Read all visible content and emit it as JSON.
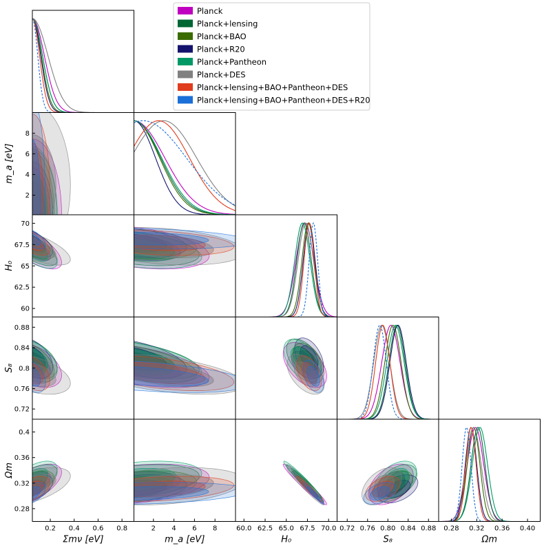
{
  "chart_data": {
    "type": "triangle",
    "title": "",
    "parameters": [
      {
        "name": "mnu",
        "label": "Σmν [eV]",
        "range": [
          0.05,
          0.9
        ],
        "ticks": [
          0.2,
          0.4,
          0.6,
          0.8
        ],
        "tick_labels": [
          "0.2",
          "0.4",
          "0.6",
          "0.8"
        ]
      },
      {
        "name": "ma",
        "label": "m_a [eV]",
        "range": [
          0.1,
          10.0
        ],
        "ticks": [
          2,
          4,
          6,
          8
        ],
        "tick_labels": [
          "2",
          "4",
          "6",
          "8"
        ]
      },
      {
        "name": "H0",
        "label": "H₀",
        "range": [
          59.0,
          71.0
        ],
        "ticks": [
          60.0,
          62.5,
          65.0,
          67.5,
          70.0
        ],
        "tick_labels": [
          "60.0",
          "62.5",
          "65.0",
          "67.5",
          "70.0"
        ],
        "y_tick_labels": [
          "60",
          "62.5",
          "65",
          "67.5",
          "70"
        ]
      },
      {
        "name": "S8",
        "label": "S₈",
        "range": [
          0.7,
          0.9
        ],
        "ticks": [
          0.72,
          0.76,
          0.8,
          0.84,
          0.88
        ],
        "tick_labels": [
          "0.72",
          "0.76",
          "0.80",
          "0.84",
          "0.88"
        ],
        "y_tick_labels": [
          "0.72",
          "0.76",
          "0.8",
          "0.84",
          "0.88"
        ]
      },
      {
        "name": "Om",
        "label": "Ωm",
        "range": [
          0.26,
          0.42
        ],
        "ticks": [
          0.28,
          0.32,
          0.36,
          0.4
        ],
        "tick_labels": [
          "0.28",
          "0.32",
          "0.36",
          "0.40"
        ],
        "y_tick_labels": [
          "0.28",
          "0.32",
          "0.36",
          "0.4"
        ]
      }
    ],
    "legend_position": "top-right",
    "series": [
      {
        "name": "Planck",
        "color": "#c000c0",
        "dashed": false,
        "mean": {
          "mnu": 0.05,
          "ma": 0.1,
          "H0": 67.2,
          "S8": 0.806,
          "Om": 0.318
        },
        "sd": {
          "mnu": 0.1,
          "ma": 3.0,
          "H0": 1.05,
          "S8": 0.018,
          "Om": 0.013
        },
        "corr": {
          "mnu_H0": -0.7,
          "mnu_S8": -0.45,
          "mnu_Om": 0.6,
          "ma_H0": -0.4,
          "ma_S8": -0.55,
          "ma_Om": 0.35,
          "H0_S8": -0.5,
          "H0_Om": -0.97,
          "S8_Om": 0.45
        }
      },
      {
        "name": "Planck+lensing",
        "color": "#006633",
        "dashed": false,
        "mean": {
          "mnu": 0.05,
          "ma": 0.1,
          "H0": 67.1,
          "S8": 0.818,
          "Om": 0.322
        },
        "sd": {
          "mnu": 0.085,
          "ma": 2.6,
          "H0": 0.85,
          "S8": 0.016,
          "Om": 0.011
        },
        "corr": {
          "mnu_H0": -0.7,
          "mnu_S8": -0.45,
          "mnu_Om": 0.6,
          "ma_H0": -0.4,
          "ma_S8": -0.55,
          "ma_Om": 0.35,
          "H0_S8": -0.5,
          "H0_Om": -0.97,
          "S8_Om": 0.45
        }
      },
      {
        "name": "Planck+BAO",
        "color": "#3a6b00",
        "dashed": false,
        "mean": {
          "mnu": 0.05,
          "ma": 0.1,
          "H0": 67.6,
          "S8": 0.81,
          "Om": 0.315
        },
        "sd": {
          "mnu": 0.075,
          "ma": 2.5,
          "H0": 0.75,
          "S8": 0.016,
          "Om": 0.01
        },
        "corr": {
          "mnu_H0": -0.6,
          "mnu_S8": -0.45,
          "mnu_Om": 0.5,
          "ma_H0": -0.3,
          "ma_S8": -0.55,
          "ma_Om": 0.3,
          "H0_S8": -0.45,
          "H0_Om": -0.97,
          "S8_Om": 0.45
        }
      },
      {
        "name": "Planck+R20",
        "color": "#14146e",
        "dashed": false,
        "mean": {
          "mnu": 0.05,
          "ma": 0.1,
          "H0": 67.7,
          "S8": 0.82,
          "Om": 0.311
        },
        "sd": {
          "mnu": 0.07,
          "ma": 2.1,
          "H0": 0.7,
          "S8": 0.016,
          "Om": 0.009
        },
        "corr": {
          "mnu_H0": -0.6,
          "mnu_S8": -0.45,
          "mnu_Om": 0.5,
          "ma_H0": -0.3,
          "ma_S8": -0.55,
          "ma_Om": 0.3,
          "H0_S8": -0.45,
          "H0_Om": -0.97,
          "S8_Om": 0.45
        }
      },
      {
        "name": "Planck+Pantheon",
        "color": "#009966",
        "dashed": false,
        "mean": {
          "mnu": 0.05,
          "ma": 0.1,
          "H0": 66.9,
          "S8": 0.815,
          "Om": 0.325
        },
        "sd": {
          "mnu": 0.085,
          "ma": 2.7,
          "H0": 0.9,
          "S8": 0.017,
          "Om": 0.012
        },
        "corr": {
          "mnu_H0": -0.7,
          "mnu_S8": -0.45,
          "mnu_Om": 0.6,
          "ma_H0": -0.4,
          "ma_S8": -0.55,
          "ma_Om": 0.35,
          "H0_S8": -0.5,
          "H0_Om": -0.97,
          "S8_Om": 0.45
        }
      },
      {
        "name": "Planck+DES",
        "color": "#808080",
        "dashed": false,
        "mean": {
          "mnu": 0.05,
          "ma": 3.0,
          "H0": 67.3,
          "S8": 0.788,
          "Om": 0.315
        },
        "sd": {
          "mnu": 0.13,
          "ma": 3.2,
          "H0": 0.9,
          "S8": 0.016,
          "Om": 0.012
        },
        "corr": {
          "mnu_H0": -0.7,
          "mnu_S8": -0.45,
          "mnu_Om": 0.55,
          "ma_H0": -0.3,
          "ma_S8": -0.5,
          "ma_Om": 0.3,
          "H0_S8": -0.5,
          "H0_Om": -0.97,
          "S8_Om": 0.45
        }
      },
      {
        "name": "Planck+lensing+BAO+Pantheon+DES",
        "color": "#e03c1e",
        "dashed": false,
        "mean": {
          "mnu": 0.05,
          "ma": 2.5,
          "H0": 67.7,
          "S8": 0.79,
          "Om": 0.311
        },
        "sd": {
          "mnu": 0.06,
          "ma": 3.0,
          "H0": 0.6,
          "S8": 0.014,
          "Om": 0.008
        },
        "corr": {
          "mnu_H0": -0.6,
          "mnu_S8": -0.4,
          "mnu_Om": 0.5,
          "ma_H0": -0.3,
          "ma_S8": -0.5,
          "ma_Om": 0.3,
          "H0_S8": -0.45,
          "H0_Om": -0.97,
          "S8_Om": 0.45
        }
      },
      {
        "name": "Planck+lensing+BAO+Pantheon+DES+R20",
        "color": "#1a6fd8",
        "dashed": true,
        "mean": {
          "mnu": 0.05,
          "ma": 1.0,
          "H0": 68.2,
          "S8": 0.784,
          "Om": 0.304
        },
        "sd": {
          "mnu": 0.045,
          "ma": 4.2,
          "H0": 0.5,
          "S8": 0.013,
          "Om": 0.007
        },
        "corr": {
          "mnu_H0": -0.6,
          "mnu_S8": -0.4,
          "mnu_Om": 0.5,
          "ma_H0": -0.25,
          "ma_S8": -0.45,
          "ma_Om": 0.25,
          "H0_S8": -0.45,
          "H0_Om": -0.97,
          "S8_Om": 0.45
        }
      }
    ]
  }
}
